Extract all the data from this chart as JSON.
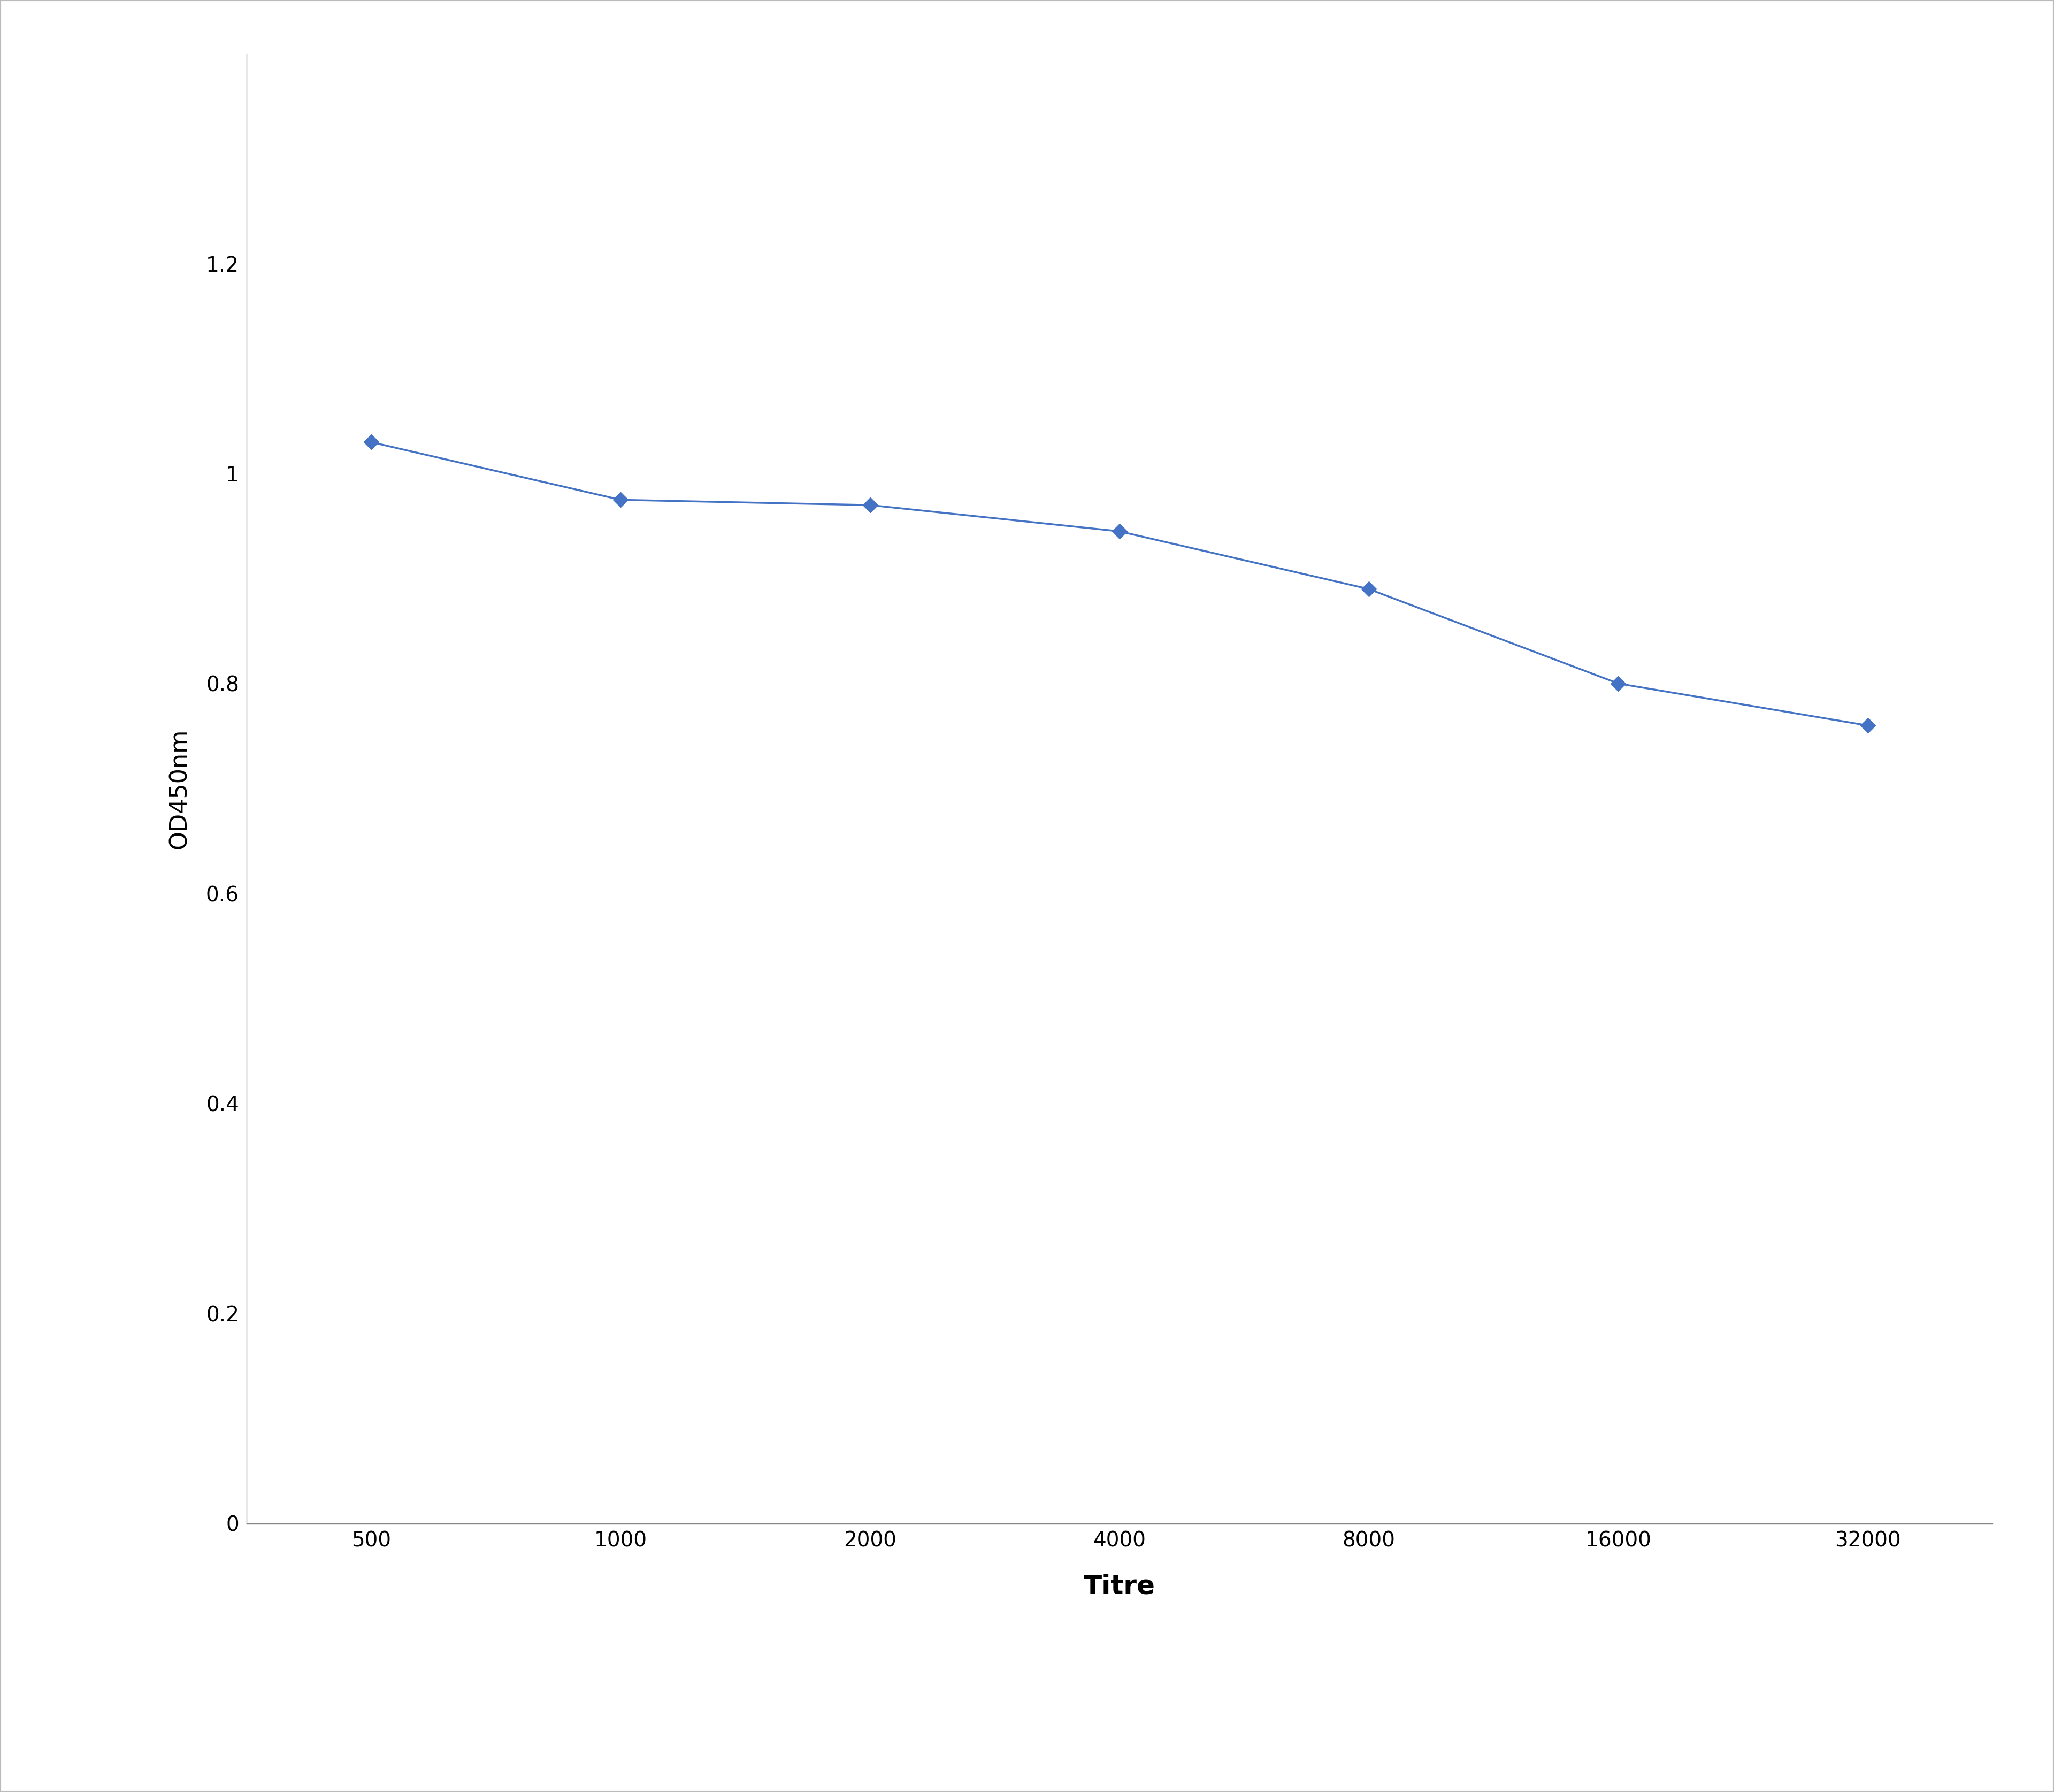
{
  "x_values": [
    500,
    1000,
    2000,
    4000,
    8000,
    16000,
    32000
  ],
  "y_values": [
    1.03,
    0.975,
    0.97,
    0.945,
    0.89,
    0.8,
    0.76
  ],
  "line_color": "#4472C4",
  "marker": "D",
  "marker_size": 14,
  "linewidth": 2.5,
  "xlabel": "Titre",
  "ylabel": "OD450nm",
  "xlabel_fontsize": 36,
  "ylabel_fontsize": 32,
  "tick_fontsize": 28,
  "ylim": [
    0,
    1.4
  ],
  "yticks": [
    0,
    0.2,
    0.4,
    0.6,
    0.8,
    1.0,
    1.2
  ],
  "ytick_labels": [
    "0",
    "0.2",
    "0.4",
    "0.6",
    "0.8",
    "1",
    "1.2"
  ],
  "xtick_labels": [
    "500",
    "1000",
    "2000",
    "4000",
    "8000",
    "16000",
    "32000"
  ],
  "background_color": "#ffffff",
  "border_color": "#aaaaaa",
  "xlabel_fontweight": "bold"
}
